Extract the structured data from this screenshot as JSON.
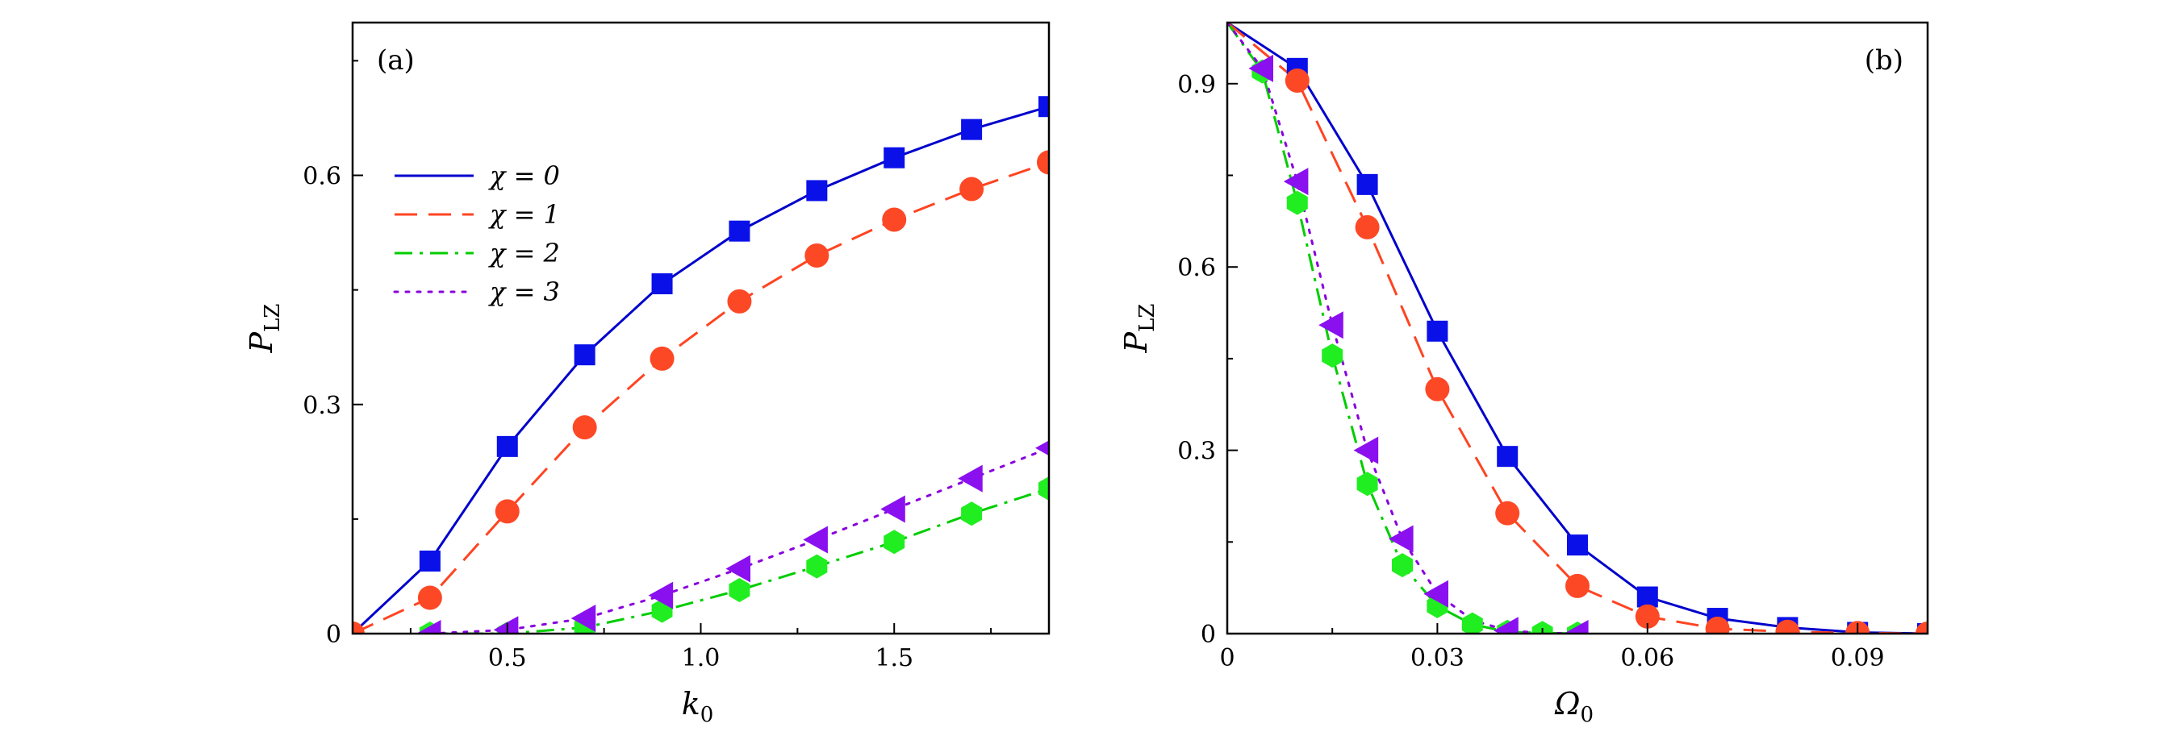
{
  "chart_data": [
    {
      "type": "line",
      "panel_label": "(a)",
      "xlabel": "k",
      "xlabel_sub": "0",
      "ylabel": "P",
      "ylabel_sub": "LZ",
      "xlim": [
        0.1,
        1.9
      ],
      "ylim": [
        0,
        0.8
      ],
      "xticks": [
        0.5,
        1.0,
        1.5
      ],
      "xtick_labels": [
        "0.5",
        "1.0",
        "1.5"
      ],
      "yticks": [
        0,
        0.3,
        0.6
      ],
      "ytick_labels": [
        "0",
        "0.3",
        "0.6"
      ],
      "grid": false,
      "legend_position": "upper-left",
      "series": [
        {
          "name": "χ = 0",
          "color": "#0000cc",
          "line": "solid",
          "marker": "square",
          "marker_color": "#0a10e8",
          "line_x": [
            0.1,
            0.3,
            0.5,
            0.7,
            0.9,
            1.1,
            1.3,
            1.5,
            1.7,
            1.9
          ],
          "line_y": [
            0.0,
            0.095,
            0.245,
            0.365,
            0.458,
            0.527,
            0.58,
            0.623,
            0.66,
            0.69
          ],
          "marker_x": [
            0.3,
            0.5,
            0.7,
            0.9,
            1.1,
            1.3,
            1.5,
            1.7,
            1.9
          ],
          "marker_y": [
            0.095,
            0.245,
            0.365,
            0.458,
            0.527,
            0.58,
            0.623,
            0.66,
            0.69
          ]
        },
        {
          "name": "χ = 1",
          "color": "#ff4422",
          "line": "dash",
          "marker": "circle",
          "marker_color": "#fd4826",
          "line_x": [
            0.1,
            0.3,
            0.5,
            0.7,
            0.9,
            1.1,
            1.3,
            1.5,
            1.7,
            1.9
          ],
          "line_y": [
            0.0,
            0.047,
            0.16,
            0.27,
            0.36,
            0.435,
            0.495,
            0.542,
            0.582,
            0.617
          ],
          "marker_x": [
            0.1,
            0.3,
            0.5,
            0.7,
            0.9,
            1.1,
            1.3,
            1.5,
            1.7,
            1.9
          ],
          "marker_y": [
            0.0,
            0.047,
            0.16,
            0.27,
            0.36,
            0.435,
            0.495,
            0.542,
            0.582,
            0.617
          ]
        },
        {
          "name": "χ = 2",
          "color": "#00cc00",
          "line": "dashdot",
          "marker": "hexagon",
          "marker_color": "#20ee20",
          "line_x": [
            0.3,
            0.5,
            0.7,
            0.9,
            1.1,
            1.3,
            1.5,
            1.7,
            1.9
          ],
          "line_y": [
            0.0,
            0.0,
            0.008,
            0.03,
            0.057,
            0.088,
            0.12,
            0.157,
            0.19
          ],
          "marker_x": [
            0.3,
            0.5,
            0.7,
            0.9,
            1.1,
            1.3,
            1.5,
            1.7,
            1.9
          ],
          "marker_y": [
            0.0,
            0.0,
            0.008,
            0.03,
            0.057,
            0.088,
            0.12,
            0.157,
            0.19
          ]
        },
        {
          "name": "χ = 3",
          "color": "#8800dd",
          "line": "dot",
          "marker": "triangle-left",
          "marker_color": "#8a10f0",
          "line_x": [
            0.3,
            0.5,
            0.7,
            0.9,
            1.1,
            1.3,
            1.5,
            1.7,
            1.9
          ],
          "line_y": [
            0.0,
            0.005,
            0.02,
            0.05,
            0.085,
            0.123,
            0.163,
            0.203,
            0.243
          ],
          "marker_x": [
            0.3,
            0.5,
            0.7,
            0.9,
            1.1,
            1.3,
            1.5,
            1.7,
            1.9
          ],
          "marker_y": [
            0.0,
            0.005,
            0.02,
            0.05,
            0.085,
            0.123,
            0.163,
            0.203,
            0.243
          ]
        }
      ]
    },
    {
      "type": "line",
      "panel_label": "(b)",
      "xlabel": "Ω",
      "xlabel_sub": "0",
      "ylabel": "P",
      "ylabel_sub": "LZ",
      "xlim": [
        0,
        0.1
      ],
      "ylim": [
        0,
        1.0
      ],
      "xticks": [
        0,
        0.03,
        0.06,
        0.09
      ],
      "xtick_labels": [
        "0",
        "0.03",
        "0.06",
        "0.09"
      ],
      "yticks": [
        0,
        0.3,
        0.6,
        0.9
      ],
      "ytick_labels": [
        "0",
        "0.3",
        "0.6",
        "0.9"
      ],
      "grid": false,
      "series": [
        {
          "name": "χ = 0",
          "color": "#0000cc",
          "line": "solid",
          "marker": "square",
          "marker_color": "#0a10e8",
          "line_x": [
            0.0,
            0.01,
            0.02,
            0.03,
            0.04,
            0.05,
            0.06,
            0.07,
            0.08,
            0.09,
            0.1
          ],
          "line_y": [
            1.0,
            0.925,
            0.735,
            0.495,
            0.29,
            0.145,
            0.06,
            0.025,
            0.01,
            0.002,
            0.0
          ],
          "marker_x": [
            0.01,
            0.02,
            0.03,
            0.04,
            0.05,
            0.06,
            0.07,
            0.08,
            0.09,
            0.1
          ],
          "marker_y": [
            0.925,
            0.735,
            0.495,
            0.29,
            0.145,
            0.06,
            0.025,
            0.01,
            0.002,
            0.0
          ]
        },
        {
          "name": "χ = 1",
          "color": "#ff4422",
          "line": "dash",
          "marker": "circle",
          "marker_color": "#fd4826",
          "line_x": [
            0.0,
            0.01,
            0.02,
            0.03,
            0.04,
            0.05,
            0.06,
            0.07,
            0.08,
            0.09,
            0.1
          ],
          "line_y": [
            1.0,
            0.905,
            0.665,
            0.4,
            0.197,
            0.078,
            0.028,
            0.008,
            0.003,
            0.001,
            0.0
          ],
          "marker_x": [
            0.01,
            0.02,
            0.03,
            0.04,
            0.05,
            0.06,
            0.07,
            0.08,
            0.09,
            0.1
          ],
          "marker_y": [
            0.905,
            0.665,
            0.4,
            0.197,
            0.078,
            0.028,
            0.008,
            0.003,
            0.001,
            0.0
          ]
        },
        {
          "name": "χ = 2",
          "color": "#00cc00",
          "line": "dashdot",
          "marker": "hexagon",
          "marker_color": "#20ee20",
          "line_x": [
            0.0,
            0.005,
            0.01,
            0.015,
            0.02,
            0.025,
            0.03,
            0.035,
            0.04,
            0.045,
            0.05
          ],
          "line_y": [
            1.0,
            0.92,
            0.705,
            0.455,
            0.245,
            0.112,
            0.045,
            0.015,
            0.003,
            0.001,
            0.0
          ],
          "marker_x": [
            0.005,
            0.01,
            0.015,
            0.02,
            0.025,
            0.03,
            0.035,
            0.04,
            0.045,
            0.05
          ],
          "marker_y": [
            0.92,
            0.705,
            0.455,
            0.245,
            0.112,
            0.045,
            0.015,
            0.003,
            0.001,
            0.0
          ]
        },
        {
          "name": "χ = 3",
          "color": "#8800dd",
          "line": "dot",
          "marker": "triangle-left",
          "marker_color": "#8a10f0",
          "line_x": [
            0.0,
            0.005,
            0.01,
            0.015,
            0.02,
            0.025,
            0.03,
            0.035,
            0.04,
            0.045,
            0.05
          ],
          "line_y": [
            1.0,
            0.925,
            0.74,
            0.505,
            0.3,
            0.155,
            0.065,
            0.022,
            0.005,
            0.001,
            0.0
          ],
          "marker_x": [
            0.005,
            0.01,
            0.015,
            0.02,
            0.025,
            0.03,
            0.04,
            0.05
          ],
          "marker_y": [
            0.925,
            0.74,
            0.505,
            0.3,
            0.155,
            0.065,
            0.005,
            0.0
          ]
        }
      ]
    }
  ]
}
